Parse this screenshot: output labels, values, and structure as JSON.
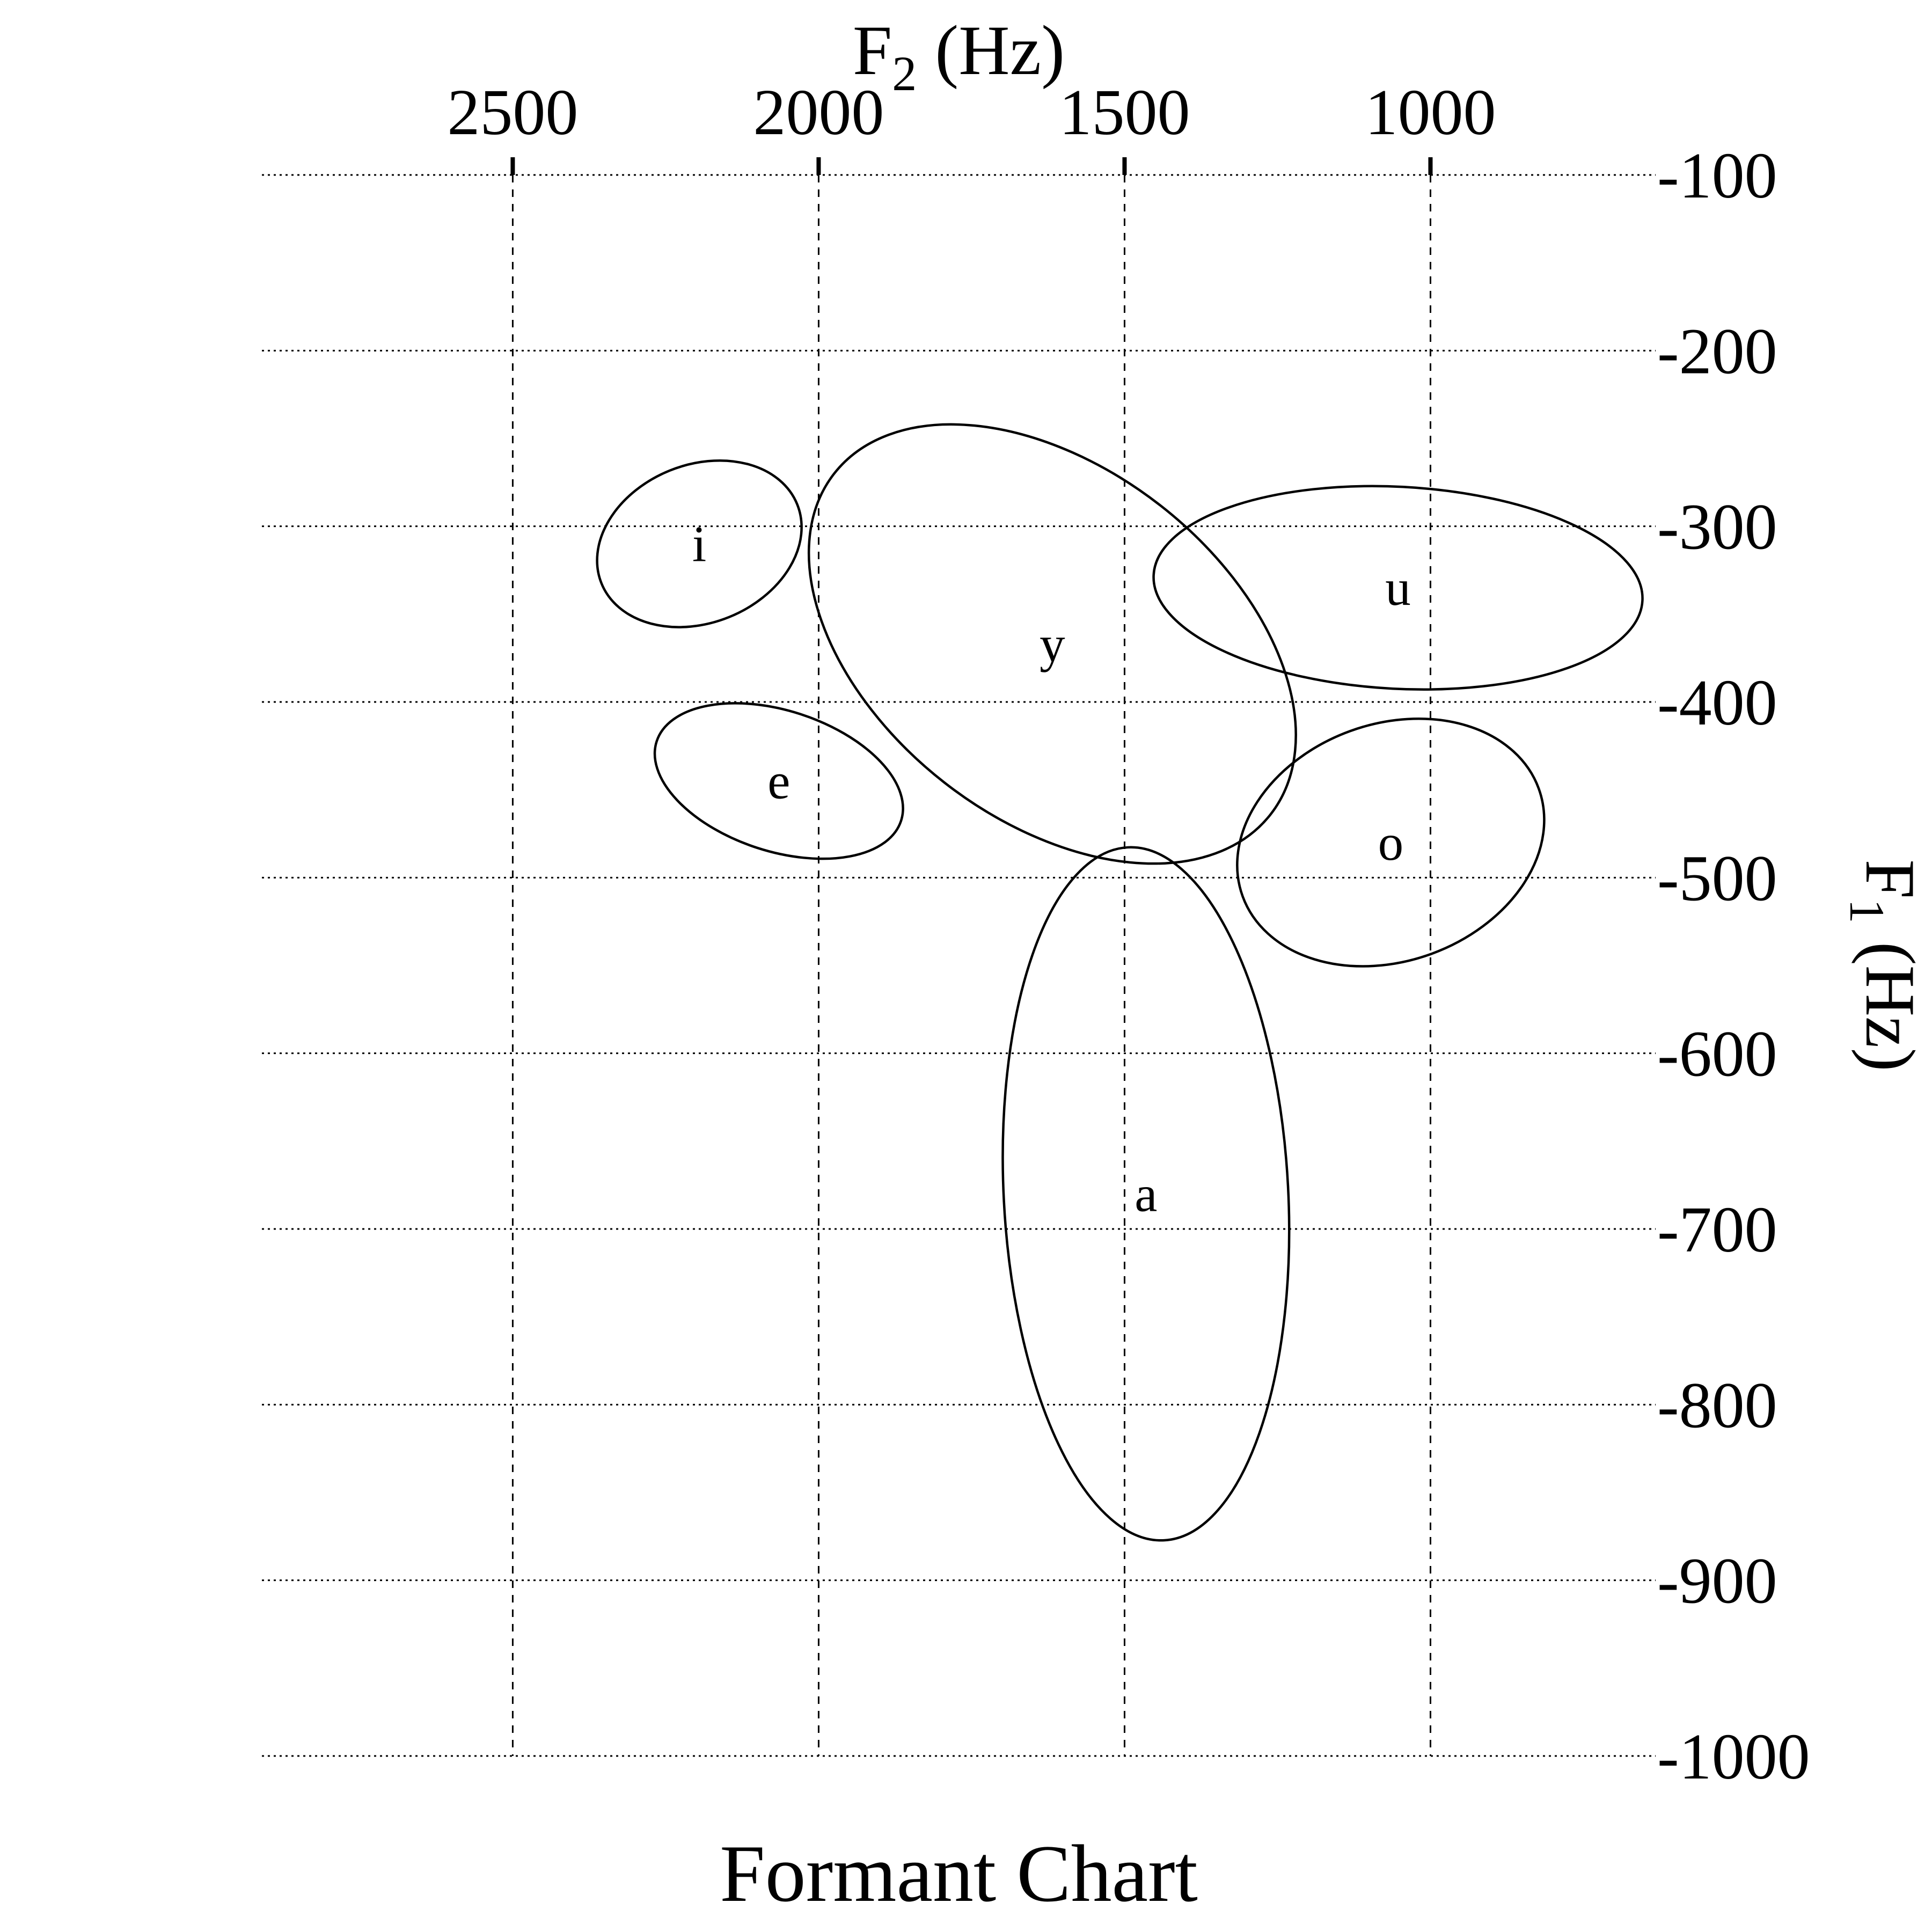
{
  "chart_data": {
    "type": "scatter",
    "title": "Formant Chart",
    "x_axis": {
      "title": "F2 (Hz)",
      "title_base": "F",
      "title_sub": "2",
      "title_unit": "(Hz)",
      "side": "top",
      "reversed": true,
      "unit": "Hz",
      "ticks": [
        2500,
        2000,
        1500,
        1000
      ],
      "range": [
        2910,
        632
      ]
    },
    "y_axis": {
      "title": "F1 (Hz)",
      "title_base": "F",
      "title_sub": "1",
      "title_unit": "(Hz)",
      "side": "right",
      "unit": "Hz",
      "ticks": [
        -100,
        -200,
        -300,
        -400,
        -500,
        -600,
        -700,
        -800,
        -900,
        -1000
      ],
      "range": [
        -100,
        -1000
      ]
    },
    "grid": {
      "horizontal_style": "dotted",
      "vertical_style": "dashed",
      "color": "#000000"
    },
    "colors": {
      "stroke": "#000000",
      "background": "#ffffff"
    },
    "vowel_ellipses": [
      {
        "label": "i",
        "f2_hz": 2195,
        "f1_hz": -310,
        "f2_width_hz": 345,
        "f1_height_hz": 90,
        "rotation_deg": -22
      },
      {
        "label": "y",
        "f2_hz": 1618,
        "f1_hz": -367,
        "f2_width_hz": 905,
        "f1_height_hz": 200,
        "rotation_deg": 38
      },
      {
        "label": "u",
        "f2_hz": 1053,
        "f1_hz": -335,
        "f2_width_hz": 800,
        "f1_height_hz": 115,
        "rotation_deg": 3
      },
      {
        "label": "e",
        "f2_hz": 2065,
        "f1_hz": -445,
        "f2_width_hz": 420,
        "f1_height_hz": 80,
        "rotation_deg": 18
      },
      {
        "label": "o",
        "f2_hz": 1065,
        "f1_hz": -480,
        "f2_width_hz": 515,
        "f1_height_hz": 135,
        "rotation_deg": -20
      },
      {
        "label": "a",
        "f2_hz": 1465,
        "f1_hz": -680,
        "f2_width_hz": 465,
        "f1_height_hz": 395,
        "rotation_deg": -3
      }
    ]
  }
}
